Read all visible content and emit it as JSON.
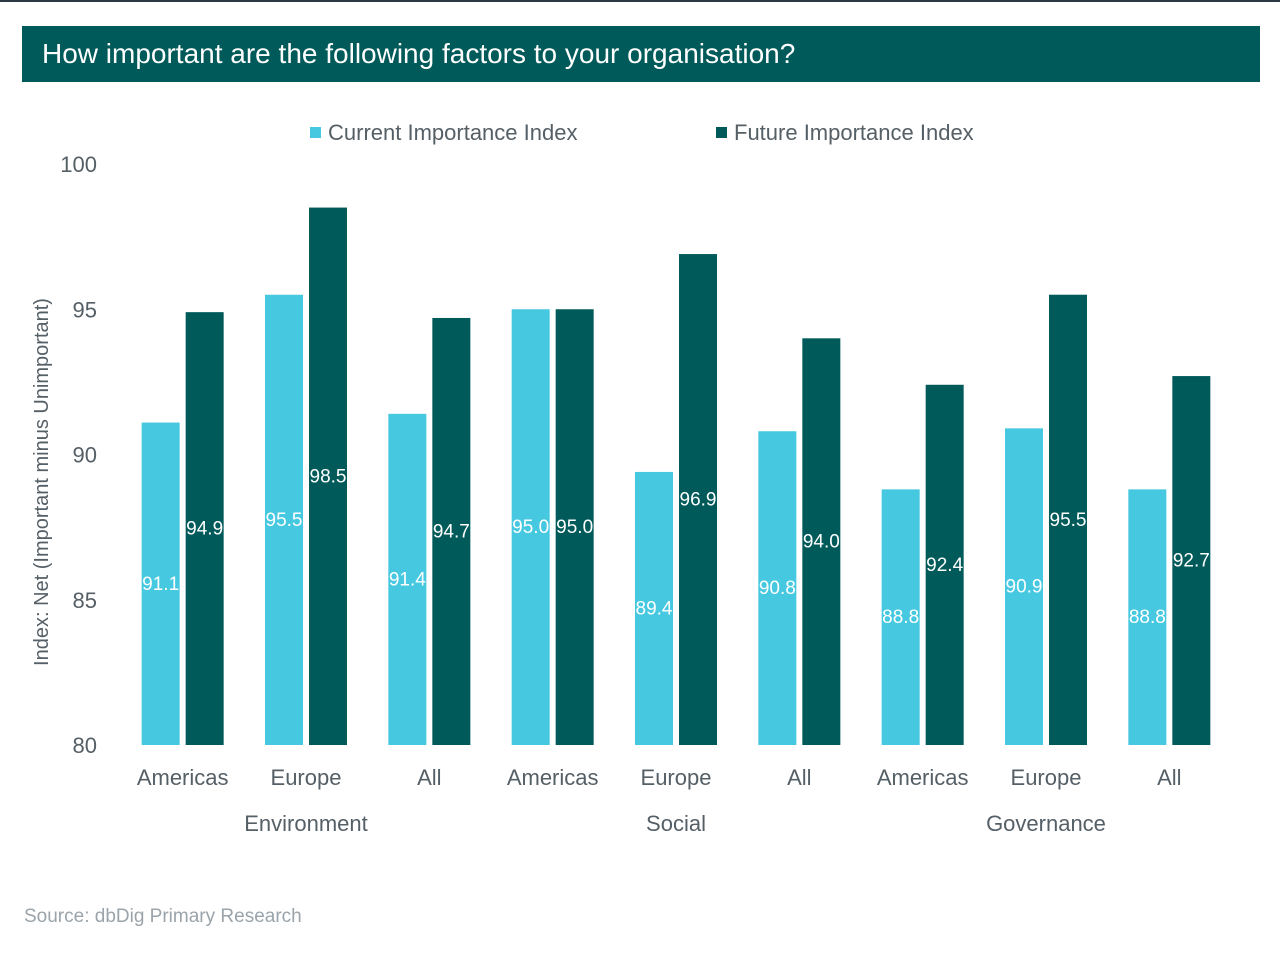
{
  "chart_data": {
    "type": "bar",
    "title": "How important are the following factors to your organisation?",
    "ylabel": "Index: Net (Important minus Unimportant)",
    "xlabel": "",
    "ylim": [
      80,
      100
    ],
    "yticks": [
      80,
      85,
      90,
      95,
      100
    ],
    "grid": false,
    "legend_position": "top",
    "groups": [
      {
        "name": "Environment",
        "categories": [
          "Americas",
          "Europe",
          "All"
        ]
      },
      {
        "name": "Social",
        "categories": [
          "Americas",
          "Europe",
          "All"
        ]
      },
      {
        "name": "Governance",
        "categories": [
          "Americas",
          "Europe",
          "All"
        ]
      }
    ],
    "categories": [
      "Americas",
      "Europe",
      "All",
      "Americas",
      "Europe",
      "All",
      "Americas",
      "Europe",
      "All"
    ],
    "series": [
      {
        "name": "Current Importance Index",
        "color": "#45c8e0",
        "values": [
          91.1,
          95.5,
          91.4,
          95.0,
          89.4,
          90.8,
          88.8,
          90.9,
          88.8
        ],
        "labels": [
          "91.1",
          "95.5",
          "91.4",
          "95.0",
          "89.4",
          "90.8",
          "88.8",
          "90.9",
          "88.8"
        ]
      },
      {
        "name": "Future Importance Index",
        "color": "#005a5a",
        "values": [
          94.9,
          98.5,
          94.7,
          95.0,
          96.9,
          94.0,
          92.4,
          95.5,
          92.7
        ],
        "labels": [
          "94.9",
          "98.5",
          "94.7",
          "95.0",
          "96.9",
          "94.0",
          "92.4",
          "95.5",
          "92.7"
        ]
      }
    ]
  },
  "footer": {
    "source": "Source: dbDig Primary Research"
  },
  "colors": {
    "title_bg": "#005a5a",
    "current": "#45c8e0",
    "future": "#005a5a"
  }
}
